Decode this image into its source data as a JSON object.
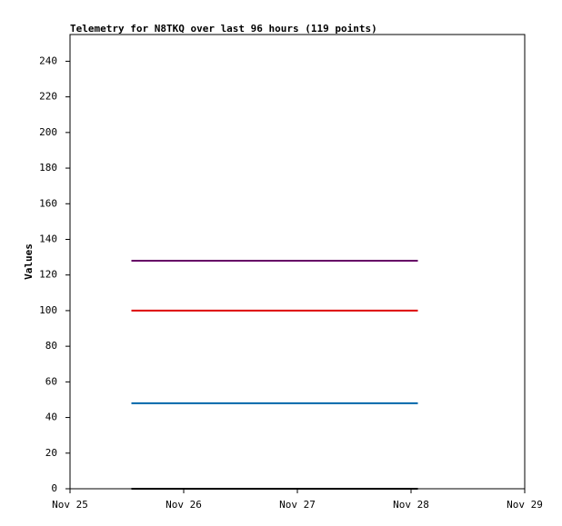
{
  "chart_data": {
    "type": "line",
    "title": "Telemetry for N8TKQ over last 96 hours (119 points)",
    "y_label": "Values",
    "x": [
      0.54,
      3.06
    ],
    "xlim": [
      0,
      4
    ],
    "xticks": [
      {
        "value": 0,
        "label": "Nov 25"
      },
      {
        "value": 1,
        "label": "Nov 26"
      },
      {
        "value": 2,
        "label": "Nov 27"
      },
      {
        "value": 3,
        "label": "Nov 28"
      },
      {
        "value": 4,
        "label": "Nov 29"
      }
    ],
    "ylim": [
      0,
      255
    ],
    "yticks": [
      0,
      20,
      40,
      60,
      80,
      100,
      120,
      140,
      160,
      180,
      200,
      220,
      240
    ],
    "series": [
      {
        "color": "#660066",
        "values": [
          128,
          128
        ]
      },
      {
        "color": "#dd0000",
        "values": [
          100,
          100
        ]
      },
      {
        "color": "#0066aa",
        "values": [
          48,
          48
        ]
      },
      {
        "color": "#000000",
        "values": [
          0,
          0
        ]
      }
    ]
  }
}
